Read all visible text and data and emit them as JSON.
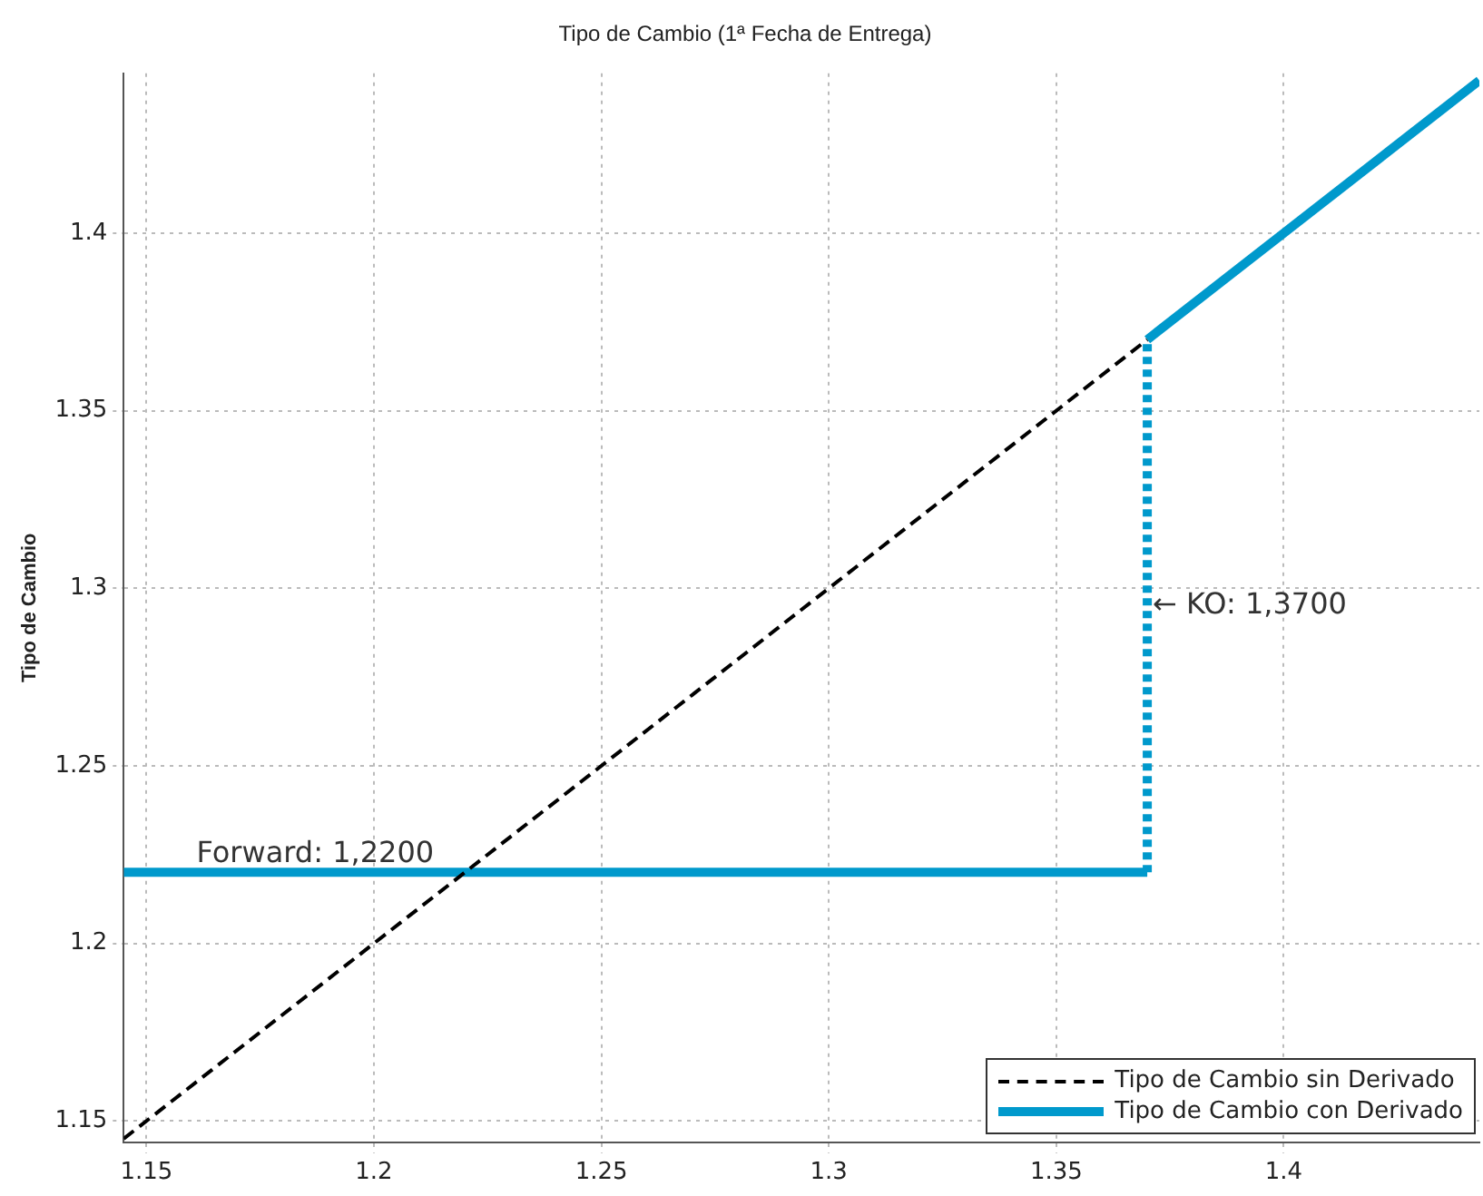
{
  "chart_data": {
    "type": "line",
    "title": "Tipo de Cambio (1ª Fecha de Entrega)",
    "ylabel": "Tipo de Cambio",
    "xlim": [
      1.145,
      1.443
    ],
    "ylim": [
      1.144,
      1.445
    ],
    "xticks": [
      1.15,
      1.2,
      1.25,
      1.3,
      1.35,
      1.4
    ],
    "yticks": [
      1.15,
      1.2,
      1.25,
      1.3,
      1.35,
      1.4
    ],
    "grid": true,
    "legend": "bottom right",
    "marker": "none",
    "series": [
      {
        "name": "Tipo de Cambio sin Derivado",
        "color": "#000000",
        "line_style": "dashed",
        "x": [
          1.145,
          1.37
        ],
        "values": [
          1.145,
          1.37
        ]
      },
      {
        "name": "Tipo de Cambio con Derivado",
        "color": "#0099cc",
        "line_style": "solid",
        "x": [
          1.145,
          1.37
        ],
        "values": [
          1.22,
          1.22
        ]
      },
      {
        "color": "#0099cc",
        "line_style": "dotted",
        "x": [
          1.37,
          1.37
        ],
        "values": [
          1.22,
          1.37
        ]
      },
      {
        "color": "#0099cc",
        "line_style": "solid",
        "x": [
          1.37,
          1.443
        ],
        "values": [
          1.37,
          1.443
        ]
      }
    ],
    "annotations": [
      {
        "text": "Forward: 1,2200",
        "x": 1.161,
        "y": 1.22
      },
      {
        "text": "← KO: 1,3700",
        "x": 1.37,
        "y": 1.295
      }
    ]
  }
}
